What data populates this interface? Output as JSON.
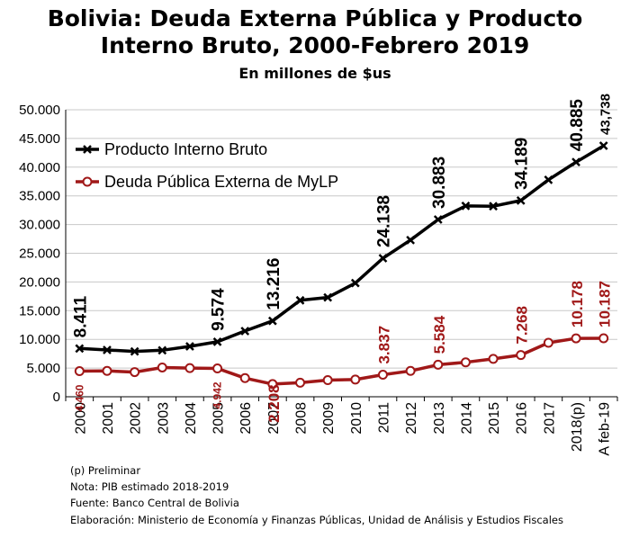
{
  "title_line1": "Bolivia: Deuda Externa Pública y Producto",
  "title_line2": "Interno Bruto, 2000-Febrero 2019",
  "subtitle": "En millones de $us",
  "notes": {
    "preliminar": "(p) Preliminar",
    "nota": "Nota: PIB estimado 2018-2019",
    "fuente": "Fuente: Banco Central de Bolivia",
    "elaboracion": "Elaboración: Ministerio de Economía y Finanzas Públicas, Unidad de Análisis y Estudios Fiscales"
  },
  "colors": {
    "pib": "#000000",
    "deuda": "#a01818"
  },
  "chart_data": {
    "type": "line",
    "categories": [
      "2000",
      "2001",
      "2002",
      "2003",
      "2004",
      "2005",
      "2006",
      "2007",
      "2008",
      "2009",
      "2010",
      "2011",
      "2012",
      "2013",
      "2014",
      "2015",
      "2016",
      "2017",
      "2018(p)",
      "A feb-19"
    ],
    "ylim": [
      0,
      50000
    ],
    "yticks": [
      0,
      5000,
      10000,
      15000,
      20000,
      25000,
      30000,
      35000,
      40000,
      45000,
      50000
    ],
    "ytick_labels": [
      "0",
      "5.000",
      "10.000",
      "15.000",
      "20.000",
      "25.000",
      "30.000",
      "35.000",
      "40.000",
      "45.000",
      "50.000"
    ],
    "grid": true,
    "legend_position": "top-left",
    "series": [
      {
        "name": "Producto Interno Bruto",
        "values": [
          8411,
          8150,
          7900,
          8100,
          8780,
          9574,
          11450,
          13216,
          16800,
          17300,
          19800,
          24138,
          27300,
          30883,
          33250,
          33200,
          34189,
          37800,
          40885,
          43738
        ],
        "labels": {
          "0": "8.411",
          "5": "9.574",
          "7": "13.216",
          "11": "24.138",
          "13": "30.883",
          "16": "34.189",
          "18": "40.885",
          "19": "43,738"
        }
      },
      {
        "name": "Deuda Pública Externa de MyLP",
        "values": [
          4460,
          4500,
          4300,
          5100,
          5000,
          4942,
          3250,
          2208,
          2450,
          2900,
          3000,
          3837,
          4500,
          5584,
          6000,
          6600,
          7268,
          9400,
          10178,
          10187
        ],
        "labels": {
          "0": "4.460",
          "5": "4.942",
          "7": "2.208",
          "11": "3.837",
          "13": "5.584",
          "16": "7.268",
          "18": "10.178",
          "19": "10.187"
        }
      }
    ]
  }
}
